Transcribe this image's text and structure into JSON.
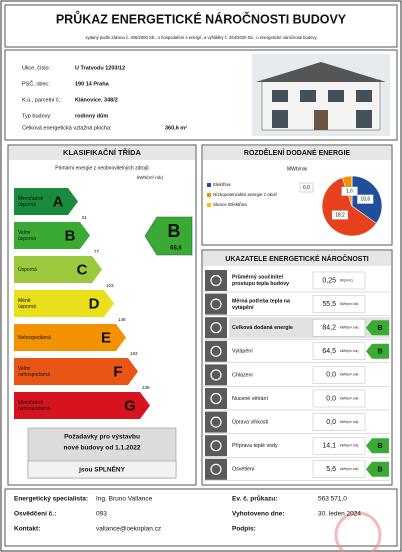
{
  "header": {
    "title": "PRŮKAZ ENERGETICKÉ NÁROČNOSTI BUDOVY",
    "subtitle": "vydaný podle zákona č. 406/2000 Sb., o hospodaření s energií, a vyhlášky č. 264/2020 Sb., o energetické náročnosti budovy"
  },
  "building": {
    "rows": [
      [
        "Ulice, číslo:",
        "U Tratvodu 1203/12"
      ],
      [
        "PSČ, obec:",
        "190 14 Praha"
      ],
      [
        "K.ú., parcelní č.:",
        "Klánovice, 348/2"
      ],
      [
        "Typ budovy:",
        "rodinný dům"
      ]
    ],
    "area_label": "Celková energetická vztažná plocha:",
    "area": "360,6 m²"
  },
  "classification": {
    "title": "KLASIFIKAČNÍ TŘÍDA",
    "subtitle": "Primární energie z neobnovitelných zdrojů",
    "unit": "kWh/(m².rok)",
    "classes": [
      {
        "letter": "A",
        "label": [
          "Mimořádně",
          "úsporná"
        ],
        "color": "#1a8a3c",
        "limit": 51
      },
      {
        "letter": "B",
        "label": [
          "Velmi",
          "úsporná"
        ],
        "color": "#3aaa35",
        "limit": 77
      },
      {
        "letter": "C",
        "label": [
          "Úsporná"
        ],
        "color": "#9bc83c",
        "limit": 103
      },
      {
        "letter": "D",
        "label": [
          "Méně",
          "úsporná"
        ],
        "color": "#e9df1a",
        "limit": 148
      },
      {
        "letter": "E",
        "label": [
          "Nehospodárná"
        ],
        "color": "#f39200",
        "limit": 193
      },
      {
        "letter": "F",
        "label": [
          "Velmi",
          "nehospodárná"
        ],
        "color": "#e95514",
        "limit": 238
      },
      {
        "letter": "G",
        "label": [
          "Mimořádně",
          "nehospodárná"
        ],
        "color": "#d7131f"
      }
    ],
    "rating": {
      "letter": "B",
      "value": "68,6",
      "color": "#3aaa35"
    },
    "requirement": [
      "Požadavky pro výstavbu",
      "nové budovy od 1.1.2022",
      "jsou SPLNĚNY"
    ]
  },
  "distribution": {
    "title": "ROZDĚLENÍ DODANÉ ENERGIE",
    "unit": "MWh/rok",
    "slices": [
      {
        "name": "Elektřina",
        "color": "#1f4e9c",
        "value": 10.6,
        "label": "10,6"
      },
      {
        "color": "#e8401c",
        "value": 18.2,
        "label": "18,2"
      },
      {
        "name": "Nízkopotenciální energie z okolí",
        "color": "#f39200",
        "value": 1.6,
        "label": "1,6"
      },
      {
        "name": "Slunce /Elektřina",
        "color": "#f5c400",
        "value": 0.0,
        "label": "0,0"
      }
    ]
  },
  "indicators": {
    "title": "UKAZATELE ENERGETICKÉ NÁROČNOSTI",
    "rows": [
      {
        "label": [
          "Průměrný součinitel",
          "prostupu tepla budovy"
        ],
        "value": "0,25",
        "unit": "W/(m².K)"
      },
      {
        "label": [
          "Měrná potřeba tepla na",
          "vytápění"
        ],
        "value": "55,5",
        "unit": "kWh/(m².rok)"
      },
      {
        "label": [
          "Celková dodaná energie"
        ],
        "value": "84,2",
        "unit": "kWh/(m².rok)",
        "class": "B",
        "highlight": true
      },
      {
        "label": [
          "Vytápění"
        ],
        "value": "64,5",
        "unit": "kWh/(m².rok)",
        "class": "B"
      },
      {
        "label": [
          "Chlazení"
        ],
        "value": "0,0",
        "unit": "kWh/(m².rok)"
      },
      {
        "label": [
          "Nucené větrání"
        ],
        "value": "0,0",
        "unit": "kWh/(m².rok)"
      },
      {
        "label": [
          "Úprava vlhkosti"
        ],
        "value": "0,0",
        "unit": "kWh/(m².rok)"
      },
      {
        "label": [
          "Příprava teplé vody"
        ],
        "value": "14,1",
        "unit": "kWh/(m².rok)",
        "class": "B"
      },
      {
        "label": [
          "Osvětlení"
        ],
        "value": "5,6",
        "unit": "kWh/(m².rok)",
        "class": "B"
      }
    ]
  },
  "footer": {
    "left": [
      [
        "Energetický specialista:",
        "Ing. Bruno Vallance"
      ],
      [
        "Osvědčení č.:",
        "093"
      ],
      [
        "Kontakt:",
        "vallance@oekoplan.cz"
      ]
    ],
    "right": [
      [
        "Ev. č. průkazu:",
        "563 571,0"
      ],
      [
        "Vyhotoveno dne:",
        "30. leden 2024"
      ],
      [
        "Podpis:"
      ]
    ]
  }
}
